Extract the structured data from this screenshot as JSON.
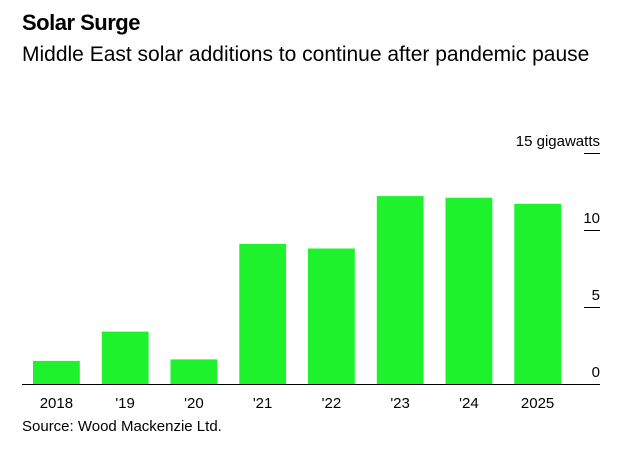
{
  "title": "Solar Surge",
  "subtitle": "Middle East solar additions to continue after pandemic pause",
  "source": "Source: Wood Mackenzie Ltd.",
  "chart_data": {
    "type": "bar",
    "categories": [
      "2018",
      "'19",
      "'20",
      "'21",
      "'22",
      "'23",
      "'24",
      "2025"
    ],
    "values": [
      1.5,
      3.4,
      1.6,
      9.1,
      8.8,
      12.2,
      12.1,
      11.7
    ],
    "y_ticks": [
      0,
      5,
      10,
      15
    ],
    "y_tick_labels": [
      "0",
      "5",
      "10",
      "15 gigawatts"
    ],
    "ylim": [
      0,
      15
    ],
    "bar_color": "#1ef22c",
    "grid": false
  }
}
